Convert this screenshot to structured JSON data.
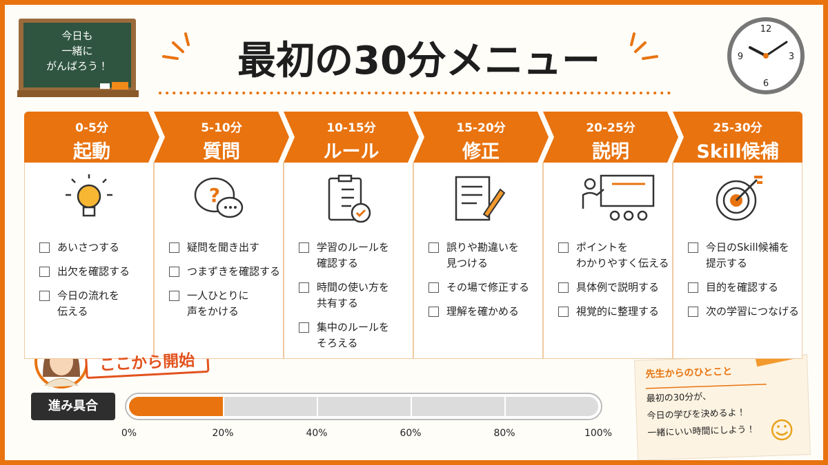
{
  "chalkboard": {
    "lines": [
      "今日も",
      "一緒に",
      "がんばろう！"
    ]
  },
  "title": "最初の30分メニュー",
  "clock": {
    "numbers": [
      "12",
      "3",
      "6",
      "9"
    ]
  },
  "steps": [
    {
      "time": "0-5分",
      "title": "起動",
      "items": [
        "あいさつする",
        "出欠を確認する",
        "今日の流れを\n伝える"
      ]
    },
    {
      "time": "5-10分",
      "title": "質問",
      "items": [
        "疑問を聞き出す",
        "つまずきを確認する",
        "一人ひとりに\n声をかける"
      ]
    },
    {
      "time": "10-15分",
      "title": "ルール",
      "items": [
        "学習のルールを\n確認する",
        "時間の使い方を\n共有する",
        "集中のルールを\nそろえる"
      ]
    },
    {
      "time": "15-20分",
      "title": "修正",
      "items": [
        "誤りや勘違いを\n見つける",
        "その場で修正する",
        "理解を確かめる"
      ]
    },
    {
      "time": "20-25分",
      "title": "説明",
      "items": [
        "ポイントを\nわかりやすく伝える",
        "具体例で説明する",
        "視覚的に整理する"
      ]
    },
    {
      "time": "25-30分",
      "title": "Skill候補",
      "items": [
        "今日のSkill候補を\n提示する",
        "目的を確認する",
        "次の学習につなげる"
      ]
    }
  ],
  "start_label": "ここから開始",
  "progress": {
    "label": "進み具合",
    "value": 20,
    "ticks": [
      {
        "value": 0,
        "label": "0%"
      },
      {
        "value": 20,
        "label": "20%"
      },
      {
        "value": 40,
        "label": "40%"
      },
      {
        "value": 60,
        "label": "60%"
      },
      {
        "value": 80,
        "label": "80%"
      },
      {
        "value": 100,
        "label": "100%"
      }
    ]
  },
  "note": {
    "title": "先生からのひとこと",
    "lines": [
      "最初の30分が、",
      "今日の学びを決めるよ！",
      "一緒にいい時間にしよう！"
    ]
  }
}
